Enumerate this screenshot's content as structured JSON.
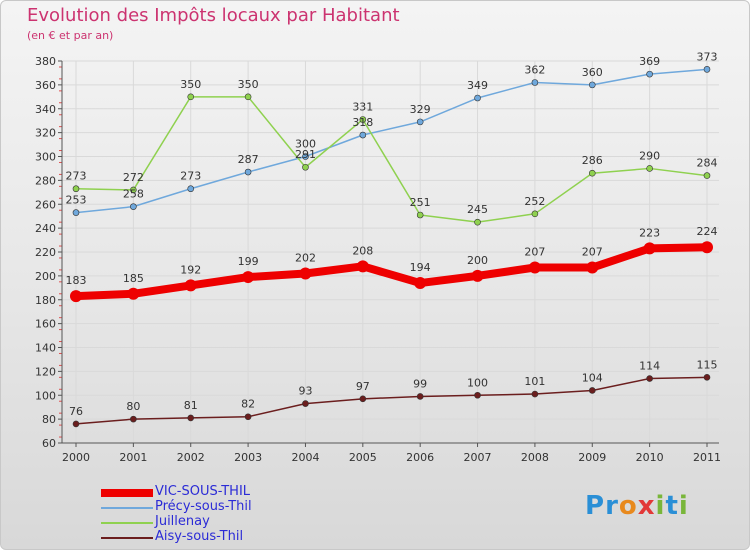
{
  "header": {
    "title": "Evolution des Impôts locaux par Habitant",
    "subtitle": "(en € et par an)"
  },
  "logo": {
    "text": "Proxiti",
    "colors": [
      "#2a8fd6",
      "#2a8fd6",
      "#e8891d",
      "#e23838",
      "#79b63a",
      "#2a8fd6",
      "#79b63a"
    ]
  },
  "chart_data": {
    "type": "line",
    "title": "Evolution des Impôts locaux par Habitant",
    "subtitle": "(en € et par an)",
    "x": [
      2000,
      2001,
      2002,
      2003,
      2004,
      2005,
      2006,
      2007,
      2008,
      2009,
      2010,
      2011
    ],
    "ylim": [
      60,
      380
    ],
    "yticks": [
      60,
      80,
      100,
      120,
      140,
      160,
      180,
      200,
      220,
      240,
      260,
      280,
      300,
      320,
      340,
      360,
      380
    ],
    "grid": true,
    "legend_position": "bottom-left",
    "series": [
      {
        "name": "VIC-SOUS-THIL",
        "color": "#ee0000",
        "values": [
          183,
          185,
          192,
          199,
          202,
          208,
          194,
          200,
          207,
          207,
          223,
          224
        ]
      },
      {
        "name": "Précy-sous-Thil",
        "color": "#6fa8dc",
        "values": [
          253,
          258,
          273,
          287,
          300,
          318,
          329,
          349,
          362,
          360,
          369,
          373
        ]
      },
      {
        "name": "Juillenay",
        "color": "#8fd14f",
        "values": [
          273,
          272,
          350,
          350,
          291,
          331,
          251,
          245,
          252,
          286,
          290,
          284
        ]
      },
      {
        "name": "Aisy-sous-Thil",
        "color": "#6b1e1e",
        "values": [
          76,
          80,
          81,
          82,
          93,
          97,
          99,
          100,
          101,
          104,
          114,
          115
        ]
      }
    ]
  }
}
